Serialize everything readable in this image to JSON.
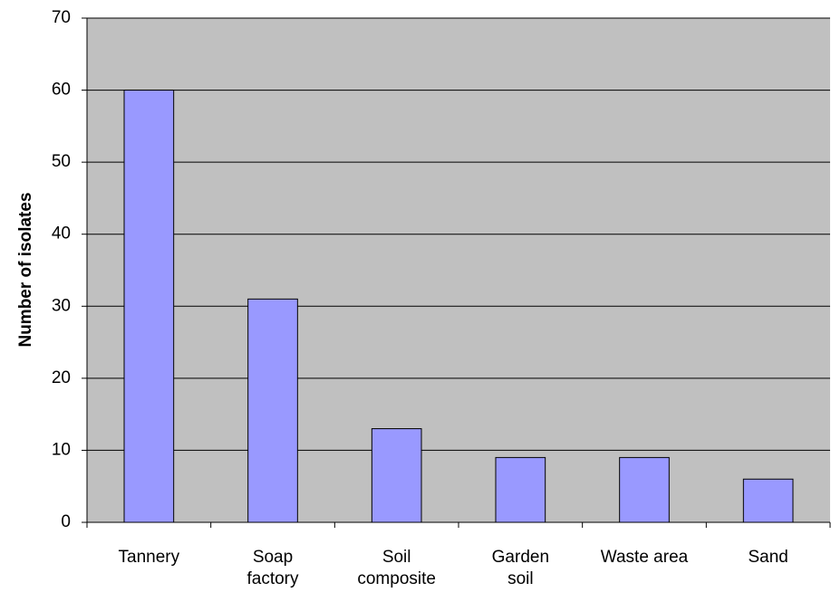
{
  "chart_data": {
    "type": "bar",
    "ylabel": "Number of isolates",
    "categories": [
      "Tannery",
      "Soap\nfactory",
      "Soil\ncomposite",
      "Garden\nsoil",
      "Waste area",
      "Sand"
    ],
    "values": [
      60,
      31,
      13,
      9,
      9,
      6
    ],
    "color": "#9999ff",
    "ylim": [
      0,
      70
    ],
    "yticks": [
      0,
      10,
      20,
      30,
      40,
      50,
      60,
      70
    ],
    "grid": true
  }
}
